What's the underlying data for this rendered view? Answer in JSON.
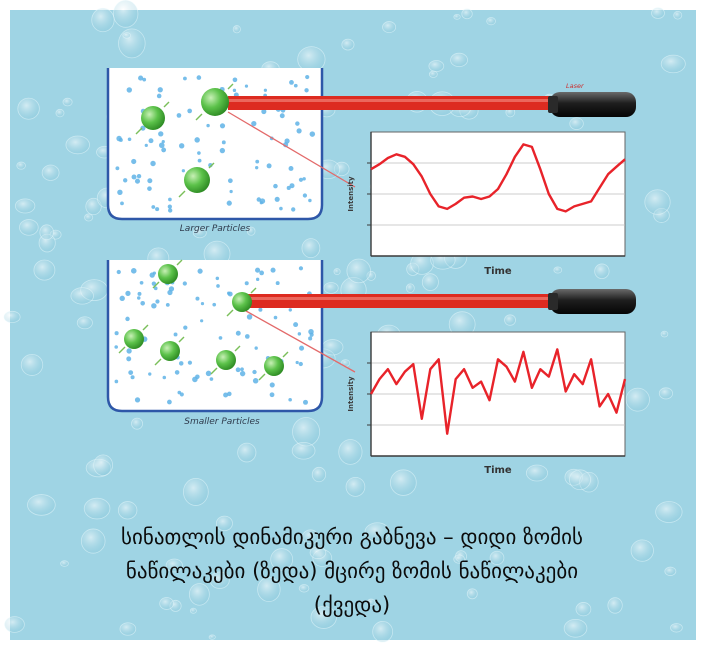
{
  "diagram": {
    "top_panel": {
      "container_label": "Larger Particles",
      "laser_label": "Laser",
      "chart_ylabel": "Intensity",
      "chart_xlabel": "Time"
    },
    "bottom_panel": {
      "container_label": "Smaller Particles",
      "chart_ylabel": "Intensity",
      "chart_xlabel": "Time"
    },
    "caption_lines": [
      "სინათლის დინამიკური გაბნევა – დიდი ზომის",
      "ნაწილაკები (ზედა)    მცირე ზომის ნაწილაკები",
      "(ქვედა)"
    ],
    "colors": {
      "background": "#9fd4e4",
      "particle": "#5cc24a",
      "laser_beam": "#dd2b20",
      "signal_line": "#e8232a",
      "container_border": "#2e57a8"
    }
  },
  "chart_data": [
    {
      "type": "line",
      "title": "",
      "xlabel": "Time",
      "ylabel": "Intensity",
      "y": [
        0.7,
        0.74,
        0.79,
        0.82,
        0.8,
        0.74,
        0.64,
        0.5,
        0.4,
        0.38,
        0.42,
        0.47,
        0.48,
        0.46,
        0.48,
        0.54,
        0.66,
        0.8,
        0.9,
        0.88,
        0.7,
        0.5,
        0.38,
        0.36,
        0.4,
        0.42,
        0.44,
        0.55,
        0.66,
        0.72,
        0.78
      ]
    },
    {
      "type": "line",
      "title": "",
      "xlabel": "Time",
      "ylabel": "Intensity",
      "y": [
        0.5,
        0.62,
        0.7,
        0.58,
        0.68,
        0.74,
        0.3,
        0.7,
        0.78,
        0.18,
        0.62,
        0.7,
        0.55,
        0.6,
        0.45,
        0.78,
        0.72,
        0.6,
        0.84,
        0.55,
        0.7,
        0.64,
        0.86,
        0.52,
        0.66,
        0.58,
        0.78,
        0.4,
        0.5,
        0.35,
        0.62
      ]
    }
  ]
}
